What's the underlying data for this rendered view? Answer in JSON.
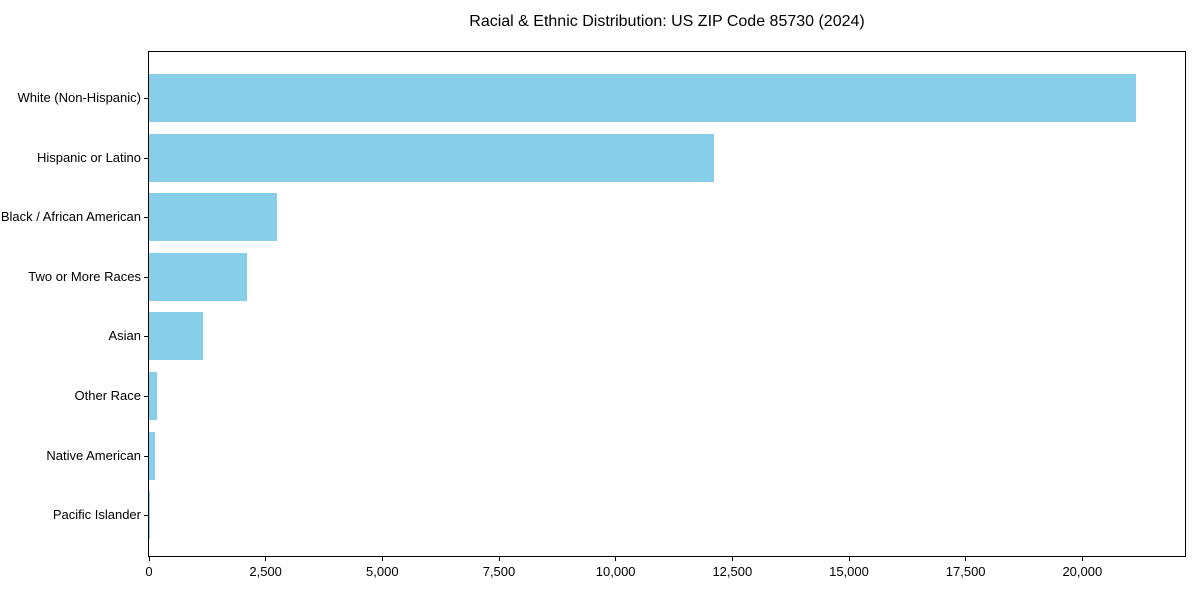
{
  "figure": {
    "background_color": "#ffffff",
    "text_color": "#000000",
    "axis_color": "#000000"
  },
  "chart_data": {
    "type": "bar",
    "orientation": "horizontal",
    "title": "Racial & Ethnic Distribution: US ZIP Code 85730 (2024)",
    "categories": [
      "White (Non-Hispanic)",
      "Hispanic or Latino",
      "Black / African American",
      "Two or More Races",
      "Asian",
      "Other Race",
      "Native American",
      "Pacific Islander"
    ],
    "values": [
      21150,
      12100,
      2750,
      2100,
      1150,
      170,
      125,
      25
    ],
    "bar_color": "#87CEEB",
    "xlabel": "",
    "ylabel": "",
    "xlim": [
      0,
      22200
    ],
    "xticks": [
      0,
      2500,
      5000,
      7500,
      10000,
      12500,
      15000,
      17500,
      20000
    ],
    "xtick_labels": [
      "0",
      "2,500",
      "5,000",
      "7,500",
      "10,000",
      "12,500",
      "15,000",
      "17,500",
      "20,000"
    ],
    "grid": false,
    "legend": false
  }
}
